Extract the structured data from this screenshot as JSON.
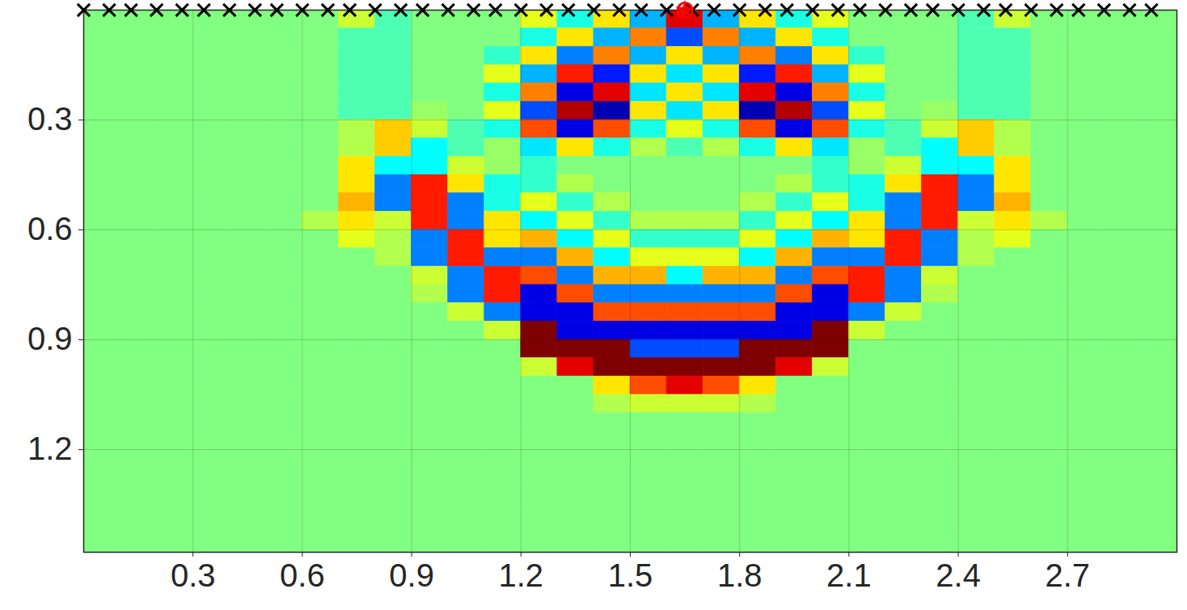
{
  "chart_data": {
    "type": "heatmap",
    "grid": true,
    "xlim": [
      0,
      3.0
    ],
    "ylim": [
      0,
      1.48
    ],
    "xticks": [
      0.3,
      0.6,
      0.9,
      1.2,
      1.5,
      1.8,
      2.1,
      2.4,
      2.7
    ],
    "yticks": [
      0.3,
      0.6,
      0.9,
      1.2
    ],
    "heatmap": {
      "clim": [
        -1,
        1
      ],
      "x": [
        0.05,
        0.15,
        0.25,
        0.35,
        0.45,
        0.55,
        0.65,
        0.75,
        0.85,
        0.95,
        1.05,
        1.15,
        1.25,
        1.35,
        1.45,
        1.55,
        1.65,
        1.75,
        1.85,
        1.95,
        2.05,
        2.15,
        2.25,
        2.35,
        2.45,
        2.55,
        2.65,
        2.75,
        2.85,
        2.95
      ],
      "y": [
        0.025,
        0.075,
        0.125,
        0.175,
        0.225,
        0.275,
        0.325,
        0.375,
        0.425,
        0.475,
        0.525,
        0.575,
        0.625,
        0.675,
        0.725,
        0.775,
        0.825,
        0.875,
        0.925,
        0.975,
        1.025,
        1.075,
        1.125,
        1.175,
        1.225,
        1.275,
        1.325,
        1.375,
        1.425,
        1.475
      ],
      "values": [
        [
          0,
          0,
          0,
          0,
          0,
          0,
          0,
          0.15,
          -0.1,
          0,
          0,
          0,
          0.2,
          -0.2,
          0.3,
          -0.4,
          0.8,
          -0.4,
          0.3,
          -0.2,
          0.2,
          0,
          0,
          0,
          -0.1,
          0.15,
          0,
          0,
          0,
          0
        ],
        [
          0,
          0,
          0,
          0,
          0,
          0,
          0,
          -0.1,
          -0.1,
          0,
          0,
          0,
          -0.2,
          0.3,
          -0.4,
          0.5,
          -0.6,
          0.5,
          -0.4,
          0.3,
          -0.2,
          0,
          0,
          0,
          -0.1,
          -0.1,
          0,
          0,
          0,
          0
        ],
        [
          0,
          0,
          0,
          0,
          0,
          0,
          0,
          -0.1,
          -0.1,
          0,
          0,
          -0.15,
          0.3,
          -0.5,
          0.5,
          -0.4,
          0.3,
          -0.4,
          0.5,
          -0.5,
          0.3,
          -0.15,
          0,
          0,
          -0.1,
          -0.1,
          0,
          0,
          0,
          0
        ],
        [
          0,
          0,
          0,
          0,
          0,
          0,
          0,
          -0.1,
          -0.1,
          0,
          0,
          0.2,
          -0.4,
          0.7,
          -0.7,
          0.3,
          -0.3,
          0.3,
          -0.7,
          0.7,
          -0.4,
          0.2,
          0,
          0,
          -0.1,
          -0.1,
          0,
          0,
          0,
          0
        ],
        [
          0,
          0,
          0,
          0,
          0,
          0,
          0,
          -0.1,
          -0.1,
          0,
          0,
          -0.2,
          0.5,
          -0.8,
          0.8,
          -0.3,
          0.3,
          -0.3,
          0.8,
          -0.8,
          0.5,
          -0.2,
          0,
          0,
          -0.1,
          -0.1,
          0,
          0,
          0,
          0
        ],
        [
          0,
          0,
          0,
          0,
          0,
          0,
          0,
          -0.1,
          -0.1,
          0.05,
          0,
          0.2,
          -0.6,
          0.9,
          -0.9,
          0.3,
          -0.3,
          0.3,
          -0.9,
          0.9,
          -0.6,
          0.2,
          0,
          0.05,
          -0.1,
          -0.1,
          0,
          0,
          0,
          0
        ],
        [
          0,
          0,
          0,
          0,
          0,
          0,
          0,
          0.1,
          0.35,
          0.15,
          -0.1,
          -0.2,
          0.6,
          -0.8,
          0.6,
          -0.2,
          0.2,
          -0.2,
          0.6,
          -0.8,
          0.6,
          -0.2,
          -0.1,
          0.15,
          0.35,
          0.1,
          0,
          0,
          0,
          0
        ],
        [
          0,
          0,
          0,
          0,
          0,
          0,
          0,
          0.1,
          0.35,
          -0.25,
          -0.1,
          0.05,
          -0.3,
          0.3,
          -0.2,
          0.1,
          -0.1,
          0.1,
          -0.2,
          0.3,
          -0.3,
          0.05,
          -0.1,
          -0.25,
          0.35,
          0.1,
          0,
          0,
          0,
          0
        ],
        [
          0,
          0,
          0,
          0,
          0,
          0,
          0,
          0.3,
          -0.25,
          -0.25,
          0.15,
          0.05,
          -0.15,
          0,
          0,
          0,
          0,
          0,
          0,
          0,
          -0.15,
          0.05,
          0.15,
          -0.25,
          -0.25,
          0.3,
          0,
          0,
          0,
          0
        ],
        [
          0,
          0,
          0,
          0,
          0,
          0,
          0,
          0.3,
          -0.5,
          0.7,
          0.3,
          -0.2,
          -0.15,
          0.1,
          0,
          0,
          0,
          0,
          0,
          0.1,
          -0.15,
          -0.2,
          0.3,
          0.7,
          -0.5,
          0.3,
          0,
          0,
          0,
          0
        ],
        [
          0,
          0,
          0,
          0,
          0,
          0,
          0,
          0.4,
          -0.5,
          0.7,
          -0.5,
          -0.2,
          0.2,
          -0.15,
          0.1,
          0,
          0,
          0,
          0.1,
          -0.15,
          0.2,
          -0.2,
          -0.5,
          0.7,
          -0.5,
          0.4,
          0,
          0,
          0,
          0
        ],
        [
          0,
          0,
          0,
          0,
          0,
          0,
          0.1,
          0.3,
          0.15,
          0.7,
          -0.5,
          0.3,
          -0.25,
          0.2,
          -0.15,
          0.1,
          0.1,
          0.1,
          -0.15,
          0.2,
          -0.25,
          0.3,
          -0.5,
          0.7,
          0.15,
          0.3,
          0.1,
          0,
          0,
          0
        ],
        [
          0,
          0,
          0,
          0,
          0,
          0,
          0,
          0.2,
          0.1,
          -0.5,
          0.7,
          0.3,
          0.4,
          -0.25,
          0.2,
          -0.15,
          -0.15,
          -0.15,
          0.2,
          -0.25,
          0.4,
          0.3,
          0.7,
          -0.5,
          0.1,
          0.2,
          0,
          0,
          0,
          0
        ],
        [
          0,
          0,
          0,
          0,
          0,
          0,
          0,
          0,
          0.1,
          -0.5,
          0.7,
          -0.5,
          -0.5,
          0.4,
          -0.25,
          0.2,
          0.2,
          0.2,
          -0.25,
          0.4,
          -0.5,
          -0.5,
          0.7,
          -0.5,
          0.1,
          0,
          0,
          0,
          0,
          0
        ],
        [
          0,
          0,
          0,
          0,
          0,
          0,
          0,
          0,
          0,
          0.15,
          -0.5,
          0.7,
          0.6,
          -0.5,
          0.4,
          0.4,
          -0.25,
          0.4,
          0.4,
          -0.5,
          0.6,
          0.7,
          -0.5,
          0.15,
          0,
          0,
          0,
          0,
          0,
          0
        ],
        [
          0,
          0,
          0,
          0,
          0,
          0,
          0,
          0,
          0,
          0.1,
          -0.5,
          0.7,
          -0.8,
          0.6,
          -0.5,
          -0.5,
          -0.5,
          -0.5,
          -0.5,
          0.6,
          -0.8,
          0.7,
          -0.5,
          0.1,
          0,
          0,
          0,
          0,
          0,
          0
        ],
        [
          0,
          0,
          0,
          0,
          0,
          0,
          0,
          0,
          0,
          0,
          0.15,
          -0.5,
          -0.8,
          -0.8,
          0.6,
          0.6,
          0.6,
          0.6,
          0.6,
          -0.8,
          -0.8,
          -0.5,
          0.15,
          0,
          0,
          0,
          0,
          0,
          0,
          0
        ],
        [
          0,
          0,
          0,
          0,
          0,
          0,
          0,
          0,
          0,
          0,
          0,
          0.15,
          1,
          -0.8,
          -0.8,
          -0.8,
          -0.8,
          -0.8,
          -0.8,
          -0.8,
          1,
          0.15,
          0,
          0,
          0,
          0,
          0,
          0,
          0,
          0
        ],
        [
          0,
          0,
          0,
          0,
          0,
          0,
          0,
          0,
          0,
          0,
          0,
          0,
          1,
          1,
          1,
          -0.6,
          -0.6,
          -0.6,
          1,
          1,
          1,
          0,
          0,
          0,
          0,
          0,
          0,
          0,
          0,
          0
        ],
        [
          0,
          0,
          0,
          0,
          0,
          0,
          0,
          0,
          0,
          0,
          0,
          0,
          0.15,
          0.8,
          1,
          1,
          1,
          1,
          1,
          0.8,
          0.15,
          0,
          0,
          0,
          0,
          0,
          0,
          0,
          0,
          0
        ],
        [
          0,
          0,
          0,
          0,
          0,
          0,
          0,
          0,
          0,
          0,
          0,
          0,
          0,
          0,
          0.3,
          0.6,
          0.8,
          0.6,
          0.3,
          0,
          0,
          0,
          0,
          0,
          0,
          0,
          0,
          0,
          0,
          0
        ],
        [
          0,
          0,
          0,
          0,
          0,
          0,
          0,
          0,
          0,
          0,
          0,
          0,
          0,
          0,
          0.1,
          0.15,
          0.15,
          0.15,
          0.1,
          0,
          0,
          0,
          0,
          0,
          0,
          0,
          0,
          0,
          0,
          0
        ],
        [
          0,
          0,
          0,
          0,
          0,
          0,
          0,
          0,
          0,
          0,
          0,
          0,
          0,
          0,
          0,
          0,
          0,
          0,
          0,
          0,
          0,
          0,
          0,
          0,
          0,
          0,
          0,
          0,
          0,
          0
        ],
        [
          0,
          0,
          0,
          0,
          0,
          0,
          0,
          0,
          0,
          0,
          0,
          0,
          0,
          0,
          0,
          0,
          0,
          0,
          0,
          0,
          0,
          0,
          0,
          0,
          0,
          0,
          0,
          0,
          0,
          0
        ],
        [
          0,
          0,
          0,
          0,
          0,
          0,
          0,
          0,
          0,
          0,
          0,
          0,
          0,
          0,
          0,
          0,
          0,
          0,
          0,
          0,
          0,
          0,
          0,
          0,
          0,
          0,
          0,
          0,
          0,
          0
        ],
        [
          0,
          0,
          0,
          0,
          0,
          0,
          0,
          0,
          0,
          0,
          0,
          0,
          0,
          0,
          0,
          0,
          0,
          0,
          0,
          0,
          0,
          0,
          0,
          0,
          0,
          0,
          0,
          0,
          0,
          0
        ],
        [
          0,
          0,
          0,
          0,
          0,
          0,
          0,
          0,
          0,
          0,
          0,
          0,
          0,
          0,
          0,
          0,
          0,
          0,
          0,
          0,
          0,
          0,
          0,
          0,
          0,
          0,
          0,
          0,
          0,
          0
        ],
        [
          0,
          0,
          0,
          0,
          0,
          0,
          0,
          0,
          0,
          0,
          0,
          0,
          0,
          0,
          0,
          0,
          0,
          0,
          0,
          0,
          0,
          0,
          0,
          0,
          0,
          0,
          0,
          0,
          0,
          0
        ],
        [
          0,
          0,
          0,
          0,
          0,
          0,
          0,
          0,
          0,
          0,
          0,
          0,
          0,
          0,
          0,
          0,
          0,
          0,
          0,
          0,
          0,
          0,
          0,
          0,
          0,
          0,
          0,
          0,
          0,
          0
        ],
        [
          0,
          0,
          0,
          0,
          0,
          0,
          0,
          0,
          0,
          0,
          0,
          0,
          0,
          0,
          0,
          0,
          0,
          0,
          0,
          0,
          0,
          0,
          0,
          0,
          0,
          0,
          0,
          0,
          0,
          0
        ]
      ]
    },
    "receivers": {
      "marker": "x",
      "color": "black",
      "y": 0,
      "x": [
        0,
        0.07,
        0.13,
        0.2,
        0.27,
        0.33,
        0.4,
        0.47,
        0.53,
        0.6,
        0.67,
        0.73,
        0.8,
        0.87,
        0.93,
        1.0,
        1.07,
        1.13,
        1.2,
        1.27,
        1.33,
        1.4,
        1.47,
        1.53,
        1.6,
        1.67,
        1.73,
        1.8,
        1.87,
        1.93,
        2.0,
        2.07,
        2.13,
        2.2,
        2.27,
        2.33,
        2.4,
        2.47,
        2.53,
        2.6,
        2.67,
        2.73,
        2.8,
        2.87,
        2.93
      ]
    },
    "source": {
      "marker": "star",
      "color": "red",
      "x": 1.65,
      "y": 0
    }
  }
}
